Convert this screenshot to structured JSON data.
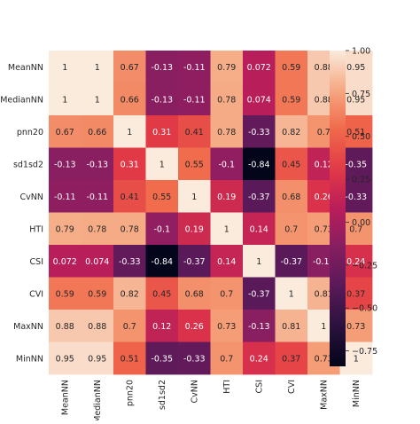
{
  "chart_data": {
    "type": "heatmap",
    "title": "",
    "xlabel": "",
    "ylabel": "",
    "row_labels": [
      "MeanNN",
      "MedianNN",
      "pnn20",
      "sd1sd2",
      "CvNN",
      "HTI",
      "CSI",
      "CVI",
      "MaxNN",
      "MinNN"
    ],
    "col_labels": [
      "MeanNN",
      "MedianNN",
      "pnn20",
      "sd1sd2",
      "CvNN",
      "HTI",
      "CSI",
      "CVI",
      "MaxNN",
      "MinNN"
    ],
    "values": [
      [
        1,
        1,
        0.67,
        -0.13,
        -0.11,
        0.79,
        0.072,
        0.59,
        0.88,
        0.95
      ],
      [
        1,
        1,
        0.66,
        -0.13,
        -0.11,
        0.78,
        0.074,
        0.59,
        0.88,
        0.95
      ],
      [
        0.67,
        0.66,
        1,
        0.31,
        0.41,
        0.78,
        -0.33,
        0.82,
        0.7,
        0.51
      ],
      [
        -0.13,
        -0.13,
        0.31,
        1,
        0.55,
        -0.1,
        -0.84,
        0.45,
        0.12,
        -0.35
      ],
      [
        -0.11,
        -0.11,
        0.41,
        0.55,
        1,
        0.19,
        -0.37,
        0.68,
        0.26,
        -0.33
      ],
      [
        0.79,
        0.78,
        0.78,
        -0.1,
        0.19,
        1,
        0.14,
        0.7,
        0.73,
        0.7
      ],
      [
        0.072,
        0.074,
        -0.33,
        -0.84,
        -0.37,
        0.14,
        1,
        -0.37,
        -0.13,
        0.24
      ],
      [
        0.59,
        0.59,
        0.82,
        0.45,
        0.68,
        0.7,
        -0.37,
        1,
        0.81,
        0.37
      ],
      [
        0.88,
        0.88,
        0.7,
        0.12,
        0.26,
        0.73,
        -0.13,
        0.81,
        1,
        0.73
      ],
      [
        0.95,
        0.95,
        0.51,
        -0.35,
        -0.33,
        0.7,
        0.24,
        0.37,
        0.73,
        1
      ]
    ],
    "annotations": [
      [
        "1",
        "1",
        "0.67",
        "-0.13",
        "-0.11",
        "0.79",
        "0.072",
        "0.59",
        "0.88",
        "0.95"
      ],
      [
        "1",
        "1",
        "0.66",
        "-0.13",
        "-0.11",
        "0.78",
        "0.074",
        "0.59",
        "0.88",
        "0.95"
      ],
      [
        "0.67",
        "0.66",
        "1",
        "0.31",
        "0.41",
        "0.78",
        "-0.33",
        "0.82",
        "0.7",
        "0.51"
      ],
      [
        "-0.13",
        "-0.13",
        "0.31",
        "1",
        "0.55",
        "-0.1",
        "-0.84",
        "0.45",
        "0.12",
        "-0.35"
      ],
      [
        "-0.11",
        "-0.11",
        "0.41",
        "0.55",
        "1",
        "0.19",
        "-0.37",
        "0.68",
        "0.26",
        "-0.33"
      ],
      [
        "0.79",
        "0.78",
        "0.78",
        "-0.1",
        "0.19",
        "1",
        "0.14",
        "0.7",
        "0.73",
        "0.7"
      ],
      [
        "0.072",
        "0.074",
        "-0.33",
        "-0.84",
        "-0.37",
        "0.14",
        "1",
        "-0.37",
        "-0.13",
        "0.24"
      ],
      [
        "0.59",
        "0.59",
        "0.82",
        "0.45",
        "0.68",
        "0.7",
        "-0.37",
        "1",
        "0.81",
        "0.37"
      ],
      [
        "0.88",
        "0.88",
        "0.7",
        "0.12",
        "0.26",
        "0.73",
        "-0.13",
        "0.81",
        "1",
        "0.73"
      ],
      [
        "0.95",
        "0.95",
        "0.51",
        "-0.35",
        "-0.33",
        "0.7",
        "0.24",
        "0.37",
        "0.73",
        "1"
      ]
    ],
    "vmin": -0.84,
    "vmax": 1.0,
    "colormap": "rocket",
    "colorbar_ticks": [
      1.0,
      0.75,
      0.5,
      0.25,
      0.0,
      -0.25,
      -0.5,
      -0.75
    ],
    "colorbar_tick_labels": [
      "1.00",
      "0.75",
      "0.50",
      "0.25",
      "0.00",
      "−0.25",
      "−0.50",
      "−0.75"
    ],
    "colorbar_position": "right",
    "grid": false
  }
}
